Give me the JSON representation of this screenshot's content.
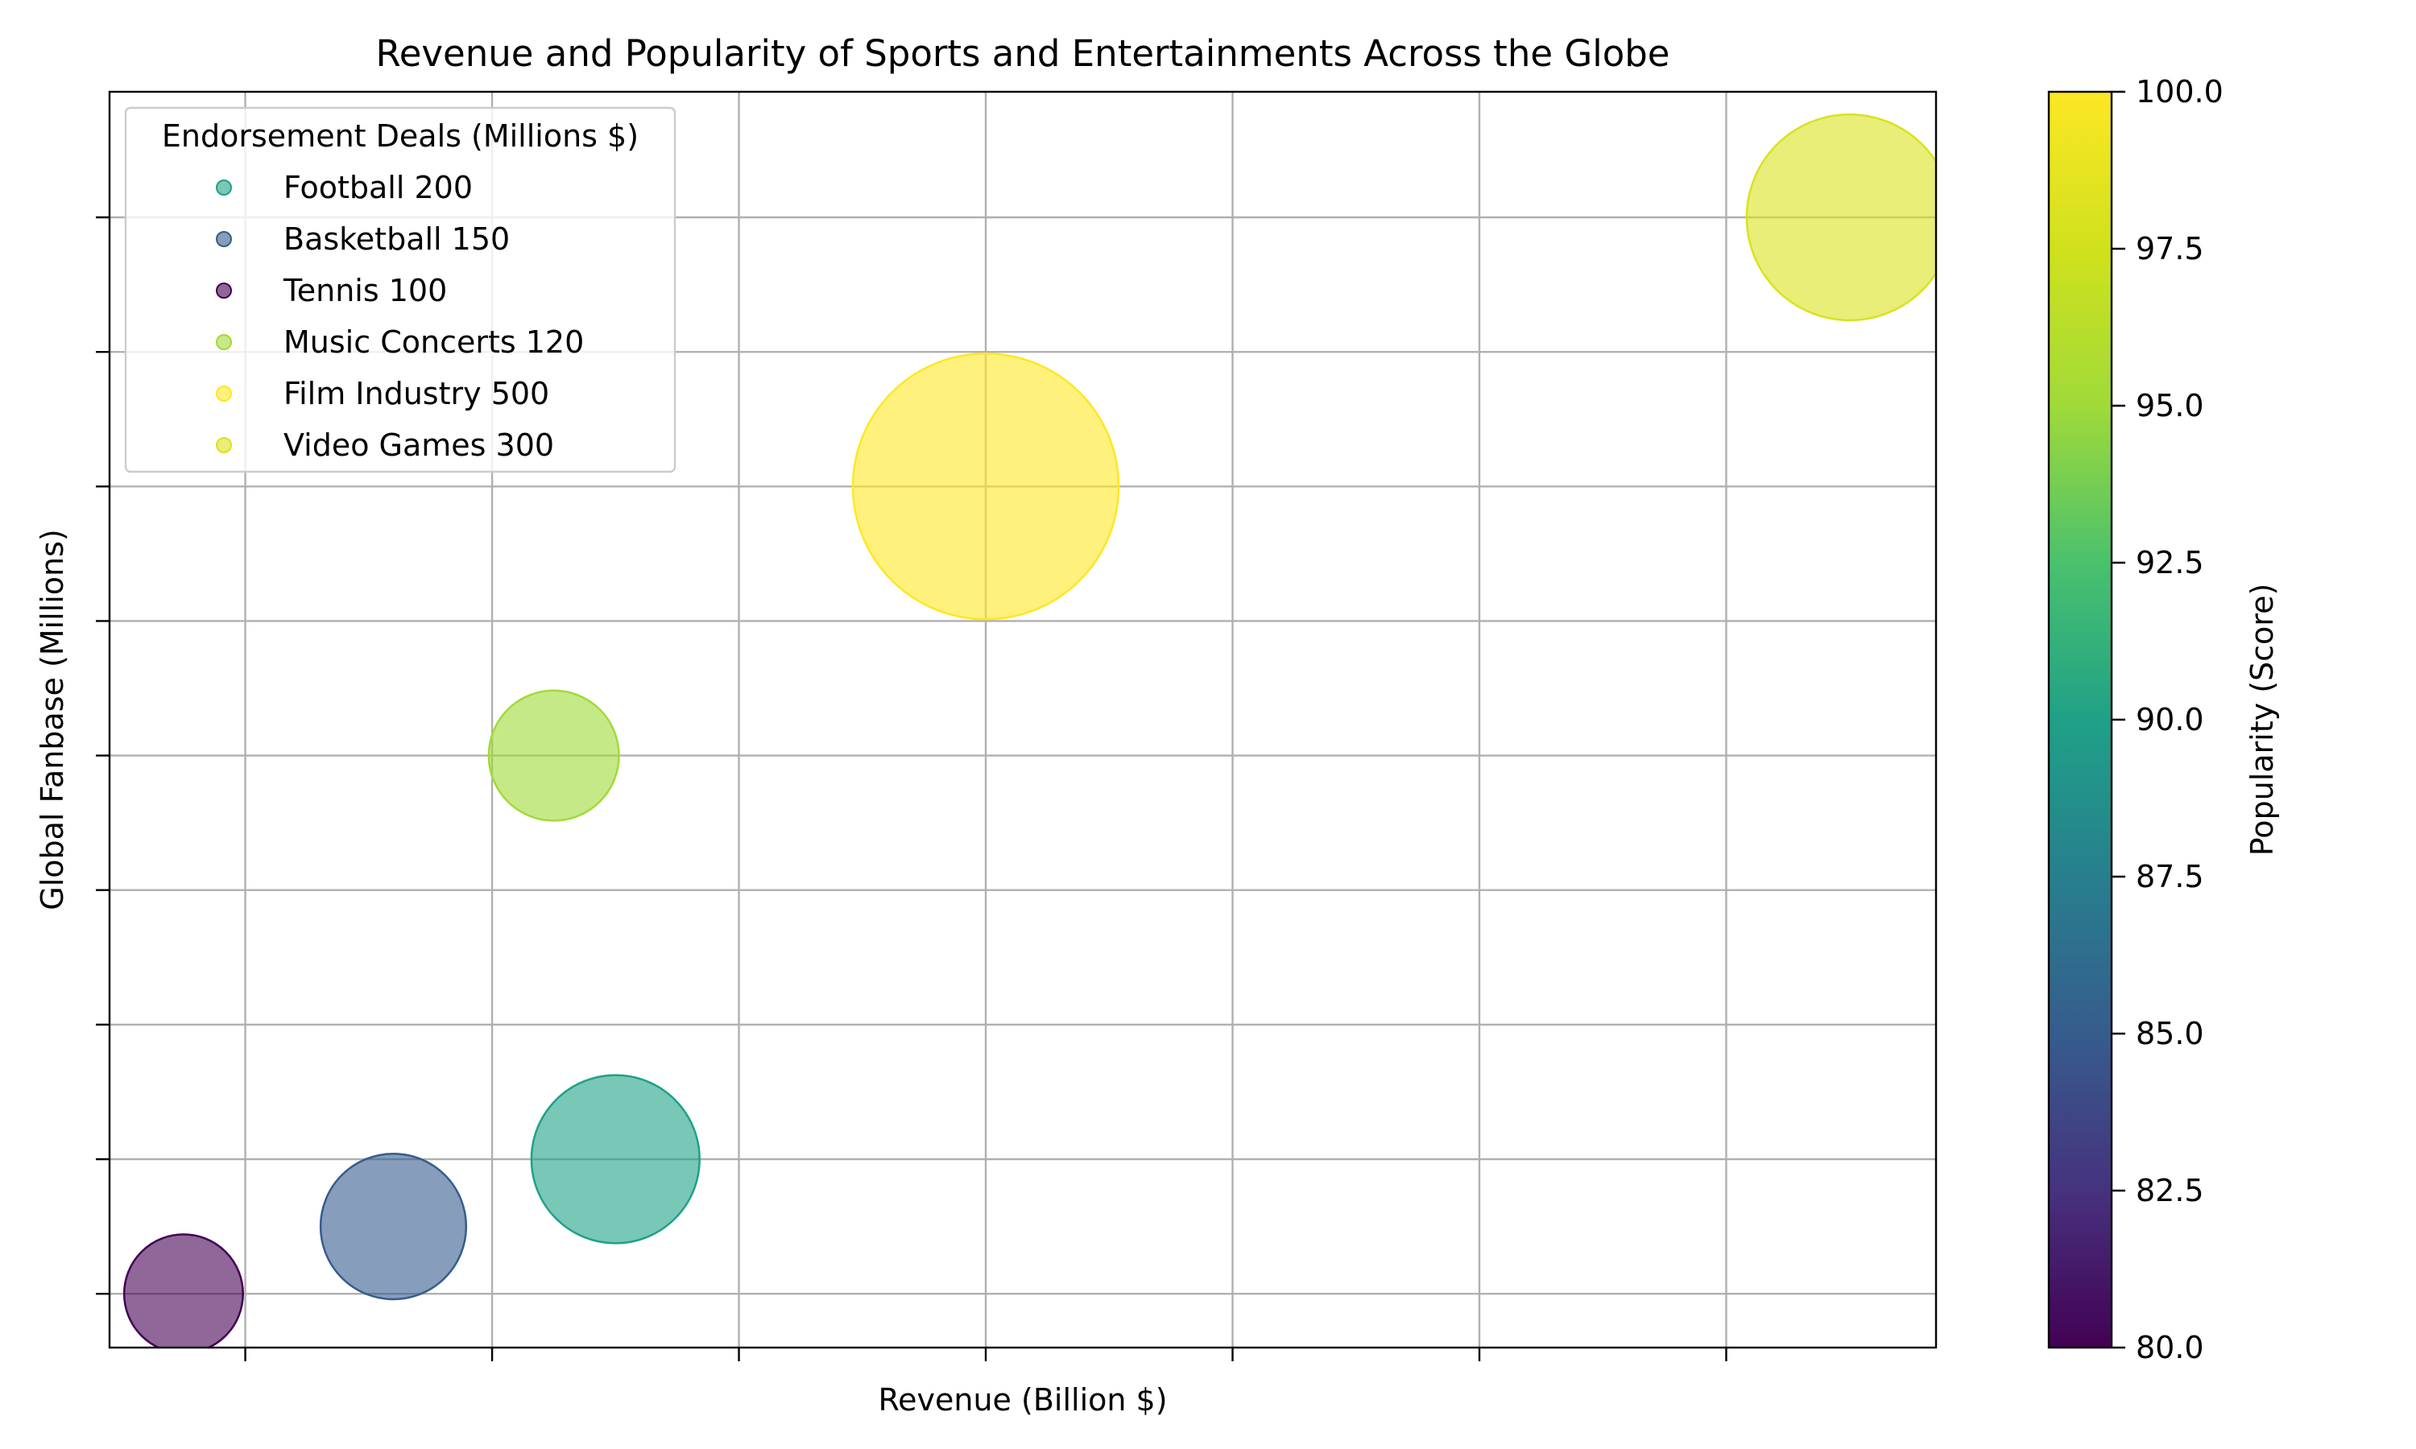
{
  "chart_data": {
    "type": "scatter",
    "title": "Revenue and Popularity of Sports and Entertainments Across the Globe",
    "xlabel": "Revenue (Billion $)",
    "ylabel": "Global Fanbase (Millions)",
    "xlim": [
      -5.5,
      68.5
    ],
    "ylim": [
      -1.2,
      26.8
    ],
    "x_ticks": [
      0,
      10,
      20,
      30,
      40,
      50,
      60
    ],
    "y_ticks": [
      0,
      3,
      6,
      9,
      12,
      15,
      18,
      21,
      24
    ],
    "x_tick_labels_shown": false,
    "y_tick_labels_shown": false,
    "grid": true,
    "legend_title": "Endorsement Deals (Millions $)",
    "legend_position": "upper-left",
    "points": [
      {
        "label": "Football 200",
        "x": 15,
        "y": 3,
        "popularity": 90,
        "endorsement": 200
      },
      {
        "label": "Basketball 150",
        "x": 6,
        "y": 1.5,
        "popularity": 85,
        "endorsement": 150
      },
      {
        "label": "Tennis 100",
        "x": -2.5,
        "y": 0,
        "popularity": 80,
        "endorsement": 100
      },
      {
        "label": "Music Concerts 120",
        "x": 12.5,
        "y": 12,
        "popularity": 95,
        "endorsement": 120
      },
      {
        "label": "Film Industry 500",
        "x": 30,
        "y": 18,
        "popularity": 100,
        "endorsement": 500
      },
      {
        "label": "Video Games 300",
        "x": 65,
        "y": 24,
        "popularity": 98,
        "endorsement": 300
      }
    ],
    "colorbar": {
      "label": "Popularity (Score)",
      "range": [
        80,
        100
      ],
      "ticks": [
        "80.0",
        "82.5",
        "85.0",
        "87.5",
        "90.0",
        "92.5",
        "95.0",
        "97.5",
        "100.0"
      ],
      "colormap": "viridis"
    }
  }
}
